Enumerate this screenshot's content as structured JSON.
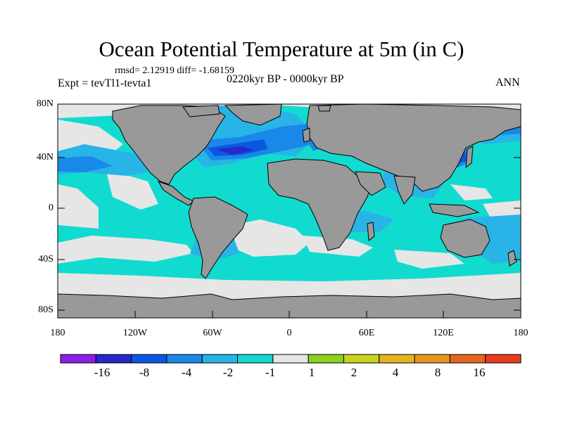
{
  "title": "Ocean Potential Temperature at 5m (in C)",
  "stats": "rmsd= 2.12919 diff= -1.68159",
  "experiment": "Expt = tevTl1-tevta1",
  "period": "0220kyr BP - 0000kyr BP",
  "season": "ANN",
  "colors": {
    "land": "#999999",
    "near_zero": "#e6e6e6",
    "cyan": "#11dbcf",
    "light_blue": "#28b4e6",
    "mid_blue": "#1a88e8",
    "deep_blue": "#0a58e0",
    "dark_blue": "#2828c8"
  },
  "map": {
    "lat_labels": [
      "80N",
      "40N",
      "0",
      "40S",
      "80S"
    ],
    "lon_labels": [
      "180",
      "120W",
      "60W",
      "0",
      "60E",
      "120E",
      "180"
    ]
  },
  "colorbar": {
    "colors": [
      "#8c1ee6",
      "#2828c8",
      "#0a58e0",
      "#1a88e8",
      "#28b4e6",
      "#11dbcf",
      "#e6e6e6",
      "#8ad21e",
      "#c8d21e",
      "#e6b41e",
      "#e6961e",
      "#e6641e",
      "#e63c1e"
    ],
    "labels": [
      "-16",
      "-8",
      "-4",
      "-2",
      "-1",
      "1",
      "2",
      "4",
      "8",
      "16"
    ]
  }
}
